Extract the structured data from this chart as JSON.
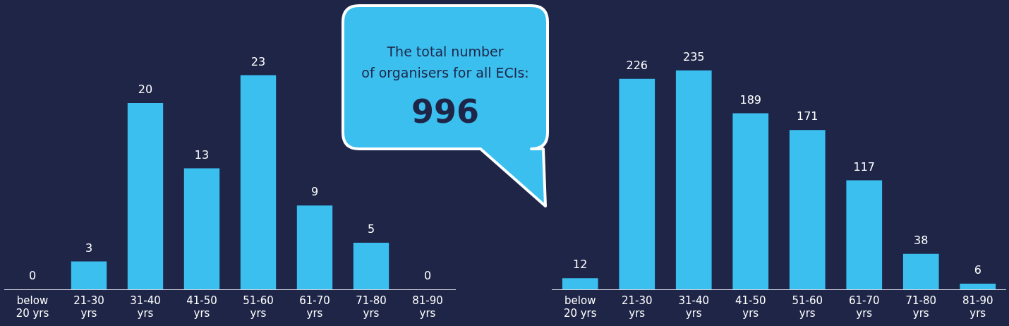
{
  "chart_data": [
    {
      "type": "bar",
      "categories": [
        "below 20 yrs",
        "21-30 yrs",
        "31-40 yrs",
        "41-50 yrs",
        "51-60 yrs",
        "61-70 yrs",
        "71-80 yrs",
        "81-90 yrs"
      ],
      "values": [
        0,
        3,
        20,
        13,
        23,
        9,
        5,
        0
      ],
      "color": "#3bbfef",
      "data_labels": true,
      "tick_labels": "x",
      "grid": false,
      "legend": false
    },
    {
      "type": "other",
      "annotations": [
        "The total number",
        "of organisers for all ECIs:",
        "996"
      ]
    },
    {
      "type": "bar",
      "categories": [
        "below 20 yrs",
        "21-30 yrs",
        "31-40 yrs",
        "41-50 yrs",
        "51-60 yrs",
        "61-70 yrs",
        "71-80 yrs",
        "81-90 yrs"
      ],
      "values": [
        12,
        226,
        235,
        189,
        171,
        117,
        38,
        6
      ],
      "color": "#3bbfef",
      "data_labels": true,
      "tick_labels": "x",
      "grid": false,
      "legend": false
    }
  ]
}
